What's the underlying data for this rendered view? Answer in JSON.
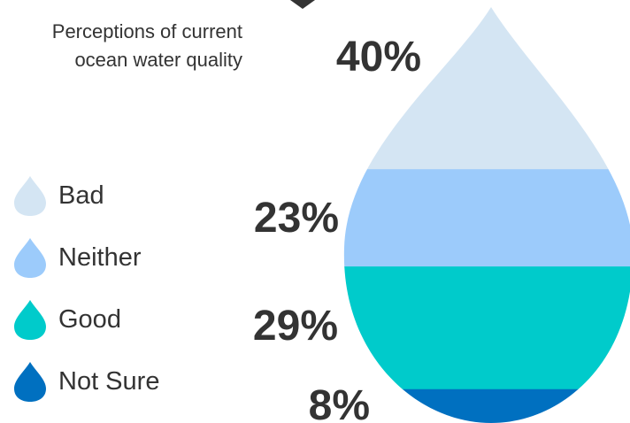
{
  "title_lines": [
    "Perceptions of current",
    "ocean water quality"
  ],
  "chart_data": {
    "type": "pie",
    "title": "Perceptions of current ocean water quality",
    "categories": [
      "Bad",
      "Neither",
      "Good",
      "Not Sure"
    ],
    "values": [
      40,
      23,
      29,
      8
    ],
    "colors": [
      "#d4e5f3",
      "#9ccbfb",
      "#00cbcb",
      "#0070c0"
    ],
    "labels": [
      "40%",
      "23%",
      "29%",
      "8%"
    ],
    "unit": "%"
  }
}
